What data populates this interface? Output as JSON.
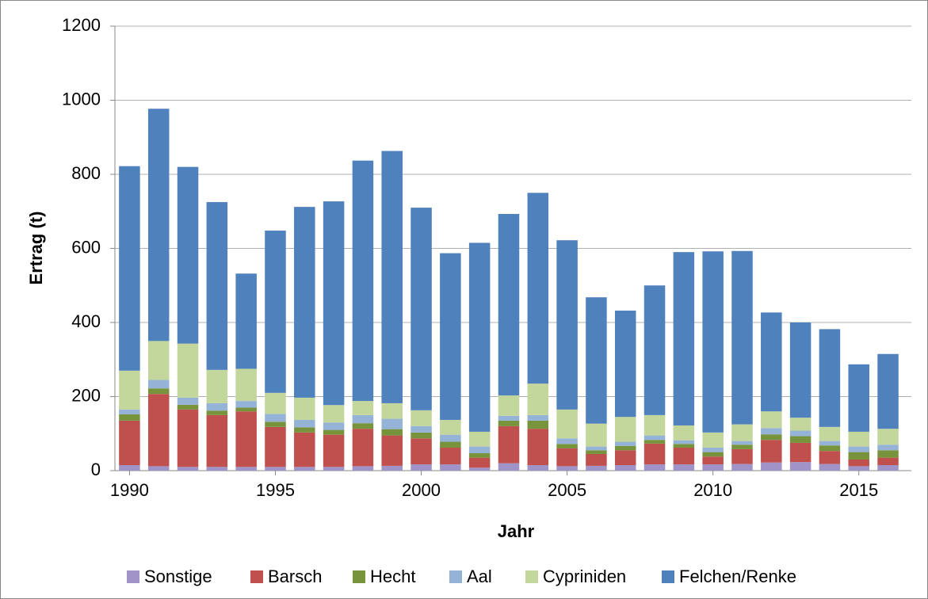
{
  "chart_data": {
    "type": "bar",
    "stacked": true,
    "x": [
      1990,
      1991,
      1992,
      1993,
      1994,
      1995,
      1996,
      1997,
      1998,
      1999,
      2000,
      2001,
      2002,
      2003,
      2004,
      2005,
      2006,
      2007,
      2008,
      2009,
      2010,
      2011,
      2012,
      2013,
      2014,
      2015,
      2016
    ],
    "xlabel": "Jahr",
    "ylabel": "Ertrag (t)",
    "xlim": [
      1989.5,
      2016.8
    ],
    "xticks": [
      1990,
      1995,
      2000,
      2005,
      2010,
      2015
    ],
    "ylim": [
      0,
      1200
    ],
    "yticks": [
      0,
      200,
      400,
      600,
      800,
      1000,
      1200
    ],
    "grid": true,
    "legend": "bottom",
    "series": [
      {
        "name": "Sonstige",
        "color": "#a093c7",
        "values": [
          15,
          12,
          10,
          10,
          10,
          10,
          10,
          10,
          12,
          13,
          17,
          17,
          8,
          20,
          15,
          12,
          13,
          15,
          17,
          17,
          17,
          18,
          22,
          23,
          18,
          12,
          15
        ]
      },
      {
        "name": "Barsch",
        "color": "#c0504d",
        "values": [
          120,
          195,
          155,
          140,
          150,
          108,
          93,
          87,
          101,
          82,
          70,
          45,
          27,
          100,
          98,
          48,
          32,
          40,
          56,
          45,
          21,
          40,
          61,
          52,
          35,
          18,
          20
        ]
      },
      {
        "name": "Hecht",
        "color": "#77933c",
        "values": [
          17,
          15,
          13,
          12,
          10,
          14,
          14,
          13,
          15,
          17,
          16,
          16,
          12,
          15,
          22,
          12,
          10,
          12,
          10,
          10,
          12,
          12,
          15,
          18,
          15,
          20,
          20
        ]
      },
      {
        "name": "Aal",
        "color": "#95b3d7",
        "values": [
          13,
          23,
          19,
          20,
          18,
          21,
          20,
          20,
          22,
          28,
          17,
          19,
          18,
          13,
          15,
          15,
          10,
          11,
          12,
          10,
          12,
          10,
          17,
          15,
          12,
          15,
          15
        ]
      },
      {
        "name": "Cypriniden",
        "color": "#c3d69b",
        "values": [
          105,
          105,
          146,
          90,
          87,
          57,
          60,
          47,
          38,
          42,
          43,
          40,
          40,
          55,
          85,
          78,
          62,
          67,
          55,
          40,
          41,
          45,
          45,
          35,
          38,
          40,
          43
        ]
      },
      {
        "name": "Felchen/Renke",
        "color": "#4f81bd",
        "values": [
          552,
          627,
          477,
          453,
          257,
          438,
          515,
          550,
          649,
          681,
          547,
          450,
          510,
          490,
          515,
          457,
          341,
          287,
          350,
          468,
          489,
          468,
          267,
          257,
          264,
          182,
          202
        ]
      }
    ]
  }
}
